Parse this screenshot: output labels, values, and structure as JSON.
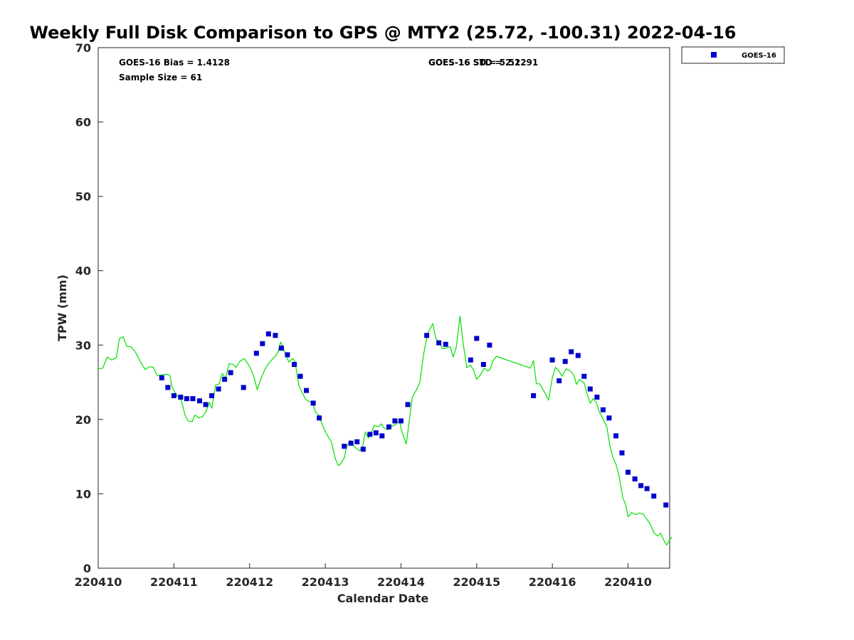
{
  "chart_data": {
    "type": "scatter",
    "title": "Weekly Full Disk Comparison to GPS @ MTY2 (25.72, -100.31) 2022-04-16",
    "xlabel": "Calendar Date",
    "ylabel": "TPW (mm)",
    "xlim": [
      0,
      7.55
    ],
    "ylim": [
      0,
      70
    ],
    "yticks": [
      0,
      10,
      20,
      30,
      40,
      50,
      60,
      70
    ],
    "xticks": [
      {
        "pos": 0,
        "label": "220410"
      },
      {
        "pos": 1,
        "label": "220411"
      },
      {
        "pos": 2,
        "label": "220412"
      },
      {
        "pos": 3,
        "label": "220413"
      },
      {
        "pos": 4,
        "label": "220414"
      },
      {
        "pos": 5,
        "label": "220415"
      },
      {
        "pos": 6,
        "label": "220416"
      },
      {
        "pos": 7,
        "label": "220410"
      }
    ],
    "grid": false,
    "legend_position": "top-right",
    "annotations": {
      "bias": "GOES-16 Bias = 1.4128",
      "sample_size": "Sample Size = 61",
      "std_a": "GOES-16 STD = 2.1291",
      "std_b": "GOES-16 SD = 5.52"
    },
    "series": [
      {
        "name": "GOES-16",
        "kind": "marker",
        "color": "#0000cc",
        "points": [
          [
            0.84,
            25.6
          ],
          [
            0.92,
            24.3
          ],
          [
            1.0,
            23.2
          ],
          [
            1.09,
            23.0
          ],
          [
            1.17,
            22.8
          ],
          [
            1.25,
            22.8
          ],
          [
            1.34,
            22.5
          ],
          [
            1.42,
            22.0
          ],
          [
            1.5,
            23.2
          ],
          [
            1.59,
            24.1
          ],
          [
            1.67,
            25.4
          ],
          [
            1.75,
            26.3
          ],
          [
            1.92,
            24.3
          ],
          [
            2.09,
            28.9
          ],
          [
            2.17,
            30.2
          ],
          [
            2.25,
            31.5
          ],
          [
            2.34,
            31.3
          ],
          [
            2.42,
            29.6
          ],
          [
            2.5,
            28.7
          ],
          [
            2.59,
            27.4
          ],
          [
            2.67,
            25.8
          ],
          [
            2.75,
            23.9
          ],
          [
            2.84,
            22.2
          ],
          [
            2.92,
            20.2
          ],
          [
            3.25,
            16.4
          ],
          [
            3.34,
            16.8
          ],
          [
            3.42,
            17.0
          ],
          [
            3.5,
            16.0
          ],
          [
            3.59,
            18.0
          ],
          [
            3.67,
            18.2
          ],
          [
            3.75,
            17.8
          ],
          [
            3.84,
            19.0
          ],
          [
            3.92,
            19.8
          ],
          [
            4.0,
            19.8
          ],
          [
            4.09,
            22.0
          ],
          [
            4.34,
            31.3
          ],
          [
            4.5,
            30.3
          ],
          [
            4.59,
            30.1
          ],
          [
            4.92,
            28.0
          ],
          [
            5.0,
            30.9
          ],
          [
            5.09,
            27.4
          ],
          [
            5.17,
            30.0
          ],
          [
            5.75,
            23.2
          ],
          [
            6.0,
            28.0
          ],
          [
            6.09,
            25.2
          ],
          [
            6.17,
            27.8
          ],
          [
            6.25,
            29.1
          ],
          [
            6.34,
            28.6
          ],
          [
            6.42,
            25.8
          ],
          [
            6.5,
            24.1
          ],
          [
            6.59,
            23.0
          ],
          [
            6.67,
            21.3
          ],
          [
            6.75,
            20.2
          ],
          [
            6.84,
            17.8
          ],
          [
            6.92,
            15.5
          ],
          [
            7.0,
            12.9
          ],
          [
            7.09,
            12.0
          ],
          [
            7.17,
            11.1
          ],
          [
            7.25,
            10.7
          ],
          [
            7.34,
            9.7
          ],
          [
            7.5,
            8.5
          ]
        ]
      },
      {
        "kind": "line",
        "color": "#00e000",
        "points": [
          [
            0.0,
            26.8
          ],
          [
            0.06,
            26.9
          ],
          [
            0.12,
            28.4
          ],
          [
            0.18,
            28.0
          ],
          [
            0.24,
            28.3
          ],
          [
            0.28,
            30.9
          ],
          [
            0.33,
            31.1
          ],
          [
            0.38,
            29.8
          ],
          [
            0.43,
            29.8
          ],
          [
            0.5,
            28.9
          ],
          [
            0.56,
            27.7
          ],
          [
            0.62,
            26.7
          ],
          [
            0.68,
            27.1
          ],
          [
            0.73,
            27.0
          ],
          [
            0.78,
            25.9
          ],
          [
            0.85,
            26.0
          ],
          [
            0.91,
            26.1
          ],
          [
            0.95,
            25.9
          ],
          [
            0.97,
            24.5
          ],
          [
            1.02,
            23.5
          ],
          [
            1.1,
            22.5
          ],
          [
            1.15,
            20.5
          ],
          [
            1.19,
            19.8
          ],
          [
            1.24,
            19.7
          ],
          [
            1.28,
            20.6
          ],
          [
            1.33,
            20.2
          ],
          [
            1.38,
            20.4
          ],
          [
            1.42,
            21.0
          ],
          [
            1.47,
            22.3
          ],
          [
            1.5,
            21.5
          ],
          [
            1.55,
            24.6
          ],
          [
            1.6,
            24.8
          ],
          [
            1.64,
            26.2
          ],
          [
            1.68,
            25.5
          ],
          [
            1.73,
            27.5
          ],
          [
            1.78,
            27.4
          ],
          [
            1.82,
            27.0
          ],
          [
            1.87,
            27.8
          ],
          [
            1.93,
            28.2
          ],
          [
            2.0,
            27.1
          ],
          [
            2.05,
            26.0
          ],
          [
            2.1,
            24.0
          ],
          [
            2.14,
            25.2
          ],
          [
            2.2,
            26.7
          ],
          [
            2.25,
            27.5
          ],
          [
            2.3,
            28.1
          ],
          [
            2.35,
            28.6
          ],
          [
            2.38,
            29.2
          ],
          [
            2.41,
            30.4
          ],
          [
            2.44,
            29.8
          ],
          [
            2.48,
            28.6
          ],
          [
            2.52,
            27.7
          ],
          [
            2.57,
            28.2
          ],
          [
            2.6,
            27.8
          ],
          [
            2.65,
            24.6
          ],
          [
            2.7,
            23.5
          ],
          [
            2.74,
            22.7
          ],
          [
            2.79,
            22.4
          ],
          [
            2.83,
            22.4
          ],
          [
            2.87,
            21.0
          ],
          [
            2.92,
            20.5
          ],
          [
            2.97,
            19.0
          ],
          [
            3.03,
            17.8
          ],
          [
            3.08,
            17.0
          ],
          [
            3.13,
            14.8
          ],
          [
            3.17,
            13.8
          ],
          [
            3.2,
            14.0
          ],
          [
            3.25,
            14.8
          ],
          [
            3.28,
            16.3
          ],
          [
            3.33,
            17.2
          ],
          [
            3.37,
            16.5
          ],
          [
            3.41,
            16.1
          ],
          [
            3.45,
            15.8
          ],
          [
            3.49,
            16.2
          ],
          [
            3.53,
            18.3
          ],
          [
            3.57,
            17.5
          ],
          [
            3.62,
            18.5
          ],
          [
            3.65,
            19.2
          ],
          [
            3.7,
            19.0
          ],
          [
            3.74,
            19.4
          ],
          [
            3.77,
            18.9
          ],
          [
            3.83,
            18.6
          ],
          [
            3.88,
            19.1
          ],
          [
            3.93,
            19.3
          ],
          [
            3.98,
            19.9
          ],
          [
            4.01,
            18.4
          ],
          [
            4.07,
            16.7
          ],
          [
            4.11,
            19.8
          ],
          [
            4.15,
            23.0
          ],
          [
            4.2,
            23.9
          ],
          [
            4.25,
            25.0
          ],
          [
            4.3,
            28.8
          ],
          [
            4.35,
            31.5
          ],
          [
            4.42,
            32.9
          ],
          [
            4.46,
            30.9
          ],
          [
            4.5,
            30.4
          ],
          [
            4.55,
            29.5
          ],
          [
            4.6,
            29.6
          ],
          [
            4.65,
            29.8
          ],
          [
            4.69,
            28.4
          ],
          [
            4.73,
            29.7
          ],
          [
            4.78,
            33.9
          ],
          [
            4.82,
            30.3
          ],
          [
            4.87,
            27.0
          ],
          [
            4.92,
            27.3
          ],
          [
            4.96,
            26.6
          ],
          [
            5.0,
            25.4
          ],
          [
            5.05,
            26.0
          ],
          [
            5.1,
            26.9
          ],
          [
            5.15,
            26.5
          ],
          [
            5.18,
            26.8
          ],
          [
            5.21,
            27.8
          ],
          [
            5.26,
            28.5
          ],
          [
            5.71,
            26.9
          ],
          [
            5.75,
            27.9
          ],
          [
            5.79,
            24.8
          ],
          [
            5.83,
            24.8
          ],
          [
            5.89,
            23.8
          ],
          [
            5.95,
            22.6
          ],
          [
            6.0,
            25.6
          ],
          [
            6.04,
            27.0
          ],
          [
            6.08,
            26.6
          ],
          [
            6.13,
            25.8
          ],
          [
            6.18,
            26.8
          ],
          [
            6.24,
            26.5
          ],
          [
            6.28,
            26.0
          ],
          [
            6.32,
            24.7
          ],
          [
            6.36,
            25.4
          ],
          [
            6.42,
            24.9
          ],
          [
            6.46,
            23.4
          ],
          [
            6.5,
            22.2
          ],
          [
            6.54,
            22.8
          ],
          [
            6.58,
            22.3
          ],
          [
            6.62,
            21.0
          ],
          [
            6.67,
            20.1
          ],
          [
            6.72,
            19.0
          ],
          [
            6.76,
            16.5
          ],
          [
            6.8,
            14.9
          ],
          [
            6.84,
            14.0
          ],
          [
            6.88,
            12.5
          ],
          [
            6.93,
            9.5
          ],
          [
            6.97,
            8.5
          ],
          [
            7.0,
            6.9
          ],
          [
            7.05,
            7.5
          ],
          [
            7.1,
            7.2
          ],
          [
            7.15,
            7.4
          ],
          [
            7.2,
            7.3
          ],
          [
            7.24,
            6.7
          ],
          [
            7.29,
            6.0
          ],
          [
            7.34,
            4.8
          ],
          [
            7.39,
            4.3
          ],
          [
            7.43,
            4.7
          ],
          [
            7.48,
            3.6
          ],
          [
            7.51,
            3.1
          ],
          [
            7.55,
            3.8
          ],
          [
            7.58,
            4.2
          ]
        ]
      }
    ]
  }
}
